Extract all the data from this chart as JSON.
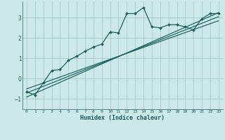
{
  "xlabel": "Humidex (Indice chaleur)",
  "bg_color": "#cce8e8",
  "grid_color": "#aacfcf",
  "line_color": "#1a6060",
  "xlim": [
    -0.5,
    23.5
  ],
  "ylim": [
    -1.5,
    3.8
  ],
  "yticks": [
    -1,
    0,
    1,
    2,
    3
  ],
  "xticks": [
    0,
    1,
    2,
    3,
    4,
    5,
    6,
    7,
    8,
    9,
    10,
    11,
    12,
    13,
    14,
    15,
    16,
    17,
    18,
    19,
    20,
    21,
    22,
    23
  ],
  "main_line": {
    "x": [
      0,
      1,
      2,
      3,
      4,
      5,
      6,
      7,
      8,
      9,
      10,
      11,
      12,
      13,
      14,
      15,
      16,
      17,
      18,
      19,
      20,
      21,
      22,
      23
    ],
    "y": [
      -0.65,
      -0.8,
      -0.2,
      0.4,
      0.45,
      0.9,
      1.1,
      1.35,
      1.55,
      1.7,
      2.3,
      2.25,
      3.2,
      3.2,
      3.5,
      2.55,
      2.5,
      2.65,
      2.65,
      2.55,
      2.4,
      2.95,
      3.2,
      3.2
    ]
  },
  "reg_lines": [
    {
      "x": [
        0,
        23
      ],
      "y": [
        -0.9,
        3.25
      ]
    },
    {
      "x": [
        0,
        23
      ],
      "y": [
        -0.7,
        3.05
      ]
    },
    {
      "x": [
        0,
        23
      ],
      "y": [
        -0.5,
        2.85
      ]
    }
  ]
}
